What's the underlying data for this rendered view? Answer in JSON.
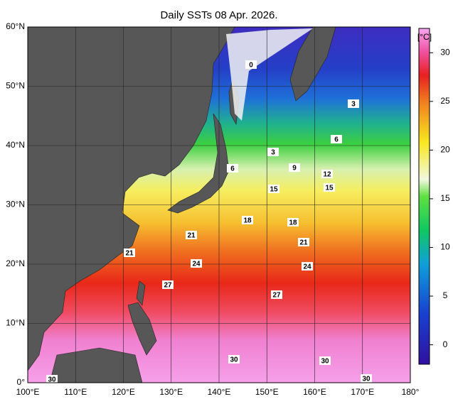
{
  "title": "Daily SSTs 08 Apr. 2026.",
  "map": {
    "lat_extent": [
      0,
      60
    ],
    "lon_extent": [
      100,
      180
    ],
    "lat_ticks": [
      {
        "value": 60,
        "label": "60°N"
      },
      {
        "value": 50,
        "label": "50°N"
      },
      {
        "value": 40,
        "label": "40°N"
      },
      {
        "value": 30,
        "label": "30°N"
      },
      {
        "value": 20,
        "label": "20°N"
      },
      {
        "value": 10,
        "label": "10°N"
      },
      {
        "value": 0,
        "label": "0°"
      }
    ],
    "lon_ticks": [
      {
        "value": 100,
        "label": "100°E"
      },
      {
        "value": 110,
        "label": "110°E"
      },
      {
        "value": 120,
        "label": "120°E"
      },
      {
        "value": 130,
        "label": "130°E"
      },
      {
        "value": 140,
        "label": "140°E"
      },
      {
        "value": 150,
        "label": "150°E"
      },
      {
        "value": 160,
        "label": "160°E"
      },
      {
        "value": 170,
        "label": "170°E"
      },
      {
        "value": 180,
        "label": "180°"
      }
    ],
    "contour_labels": [
      0,
      3,
      6,
      3,
      6,
      9,
      12,
      15,
      15,
      18,
      18,
      21,
      21,
      21,
      24,
      24,
      27,
      27,
      30,
      30,
      30,
      30
    ]
  },
  "colorbar": {
    "unit": "[°C]",
    "range": [
      -2,
      32.5
    ],
    "ticks": [
      0,
      5,
      10,
      15,
      20,
      25,
      30
    ]
  }
}
